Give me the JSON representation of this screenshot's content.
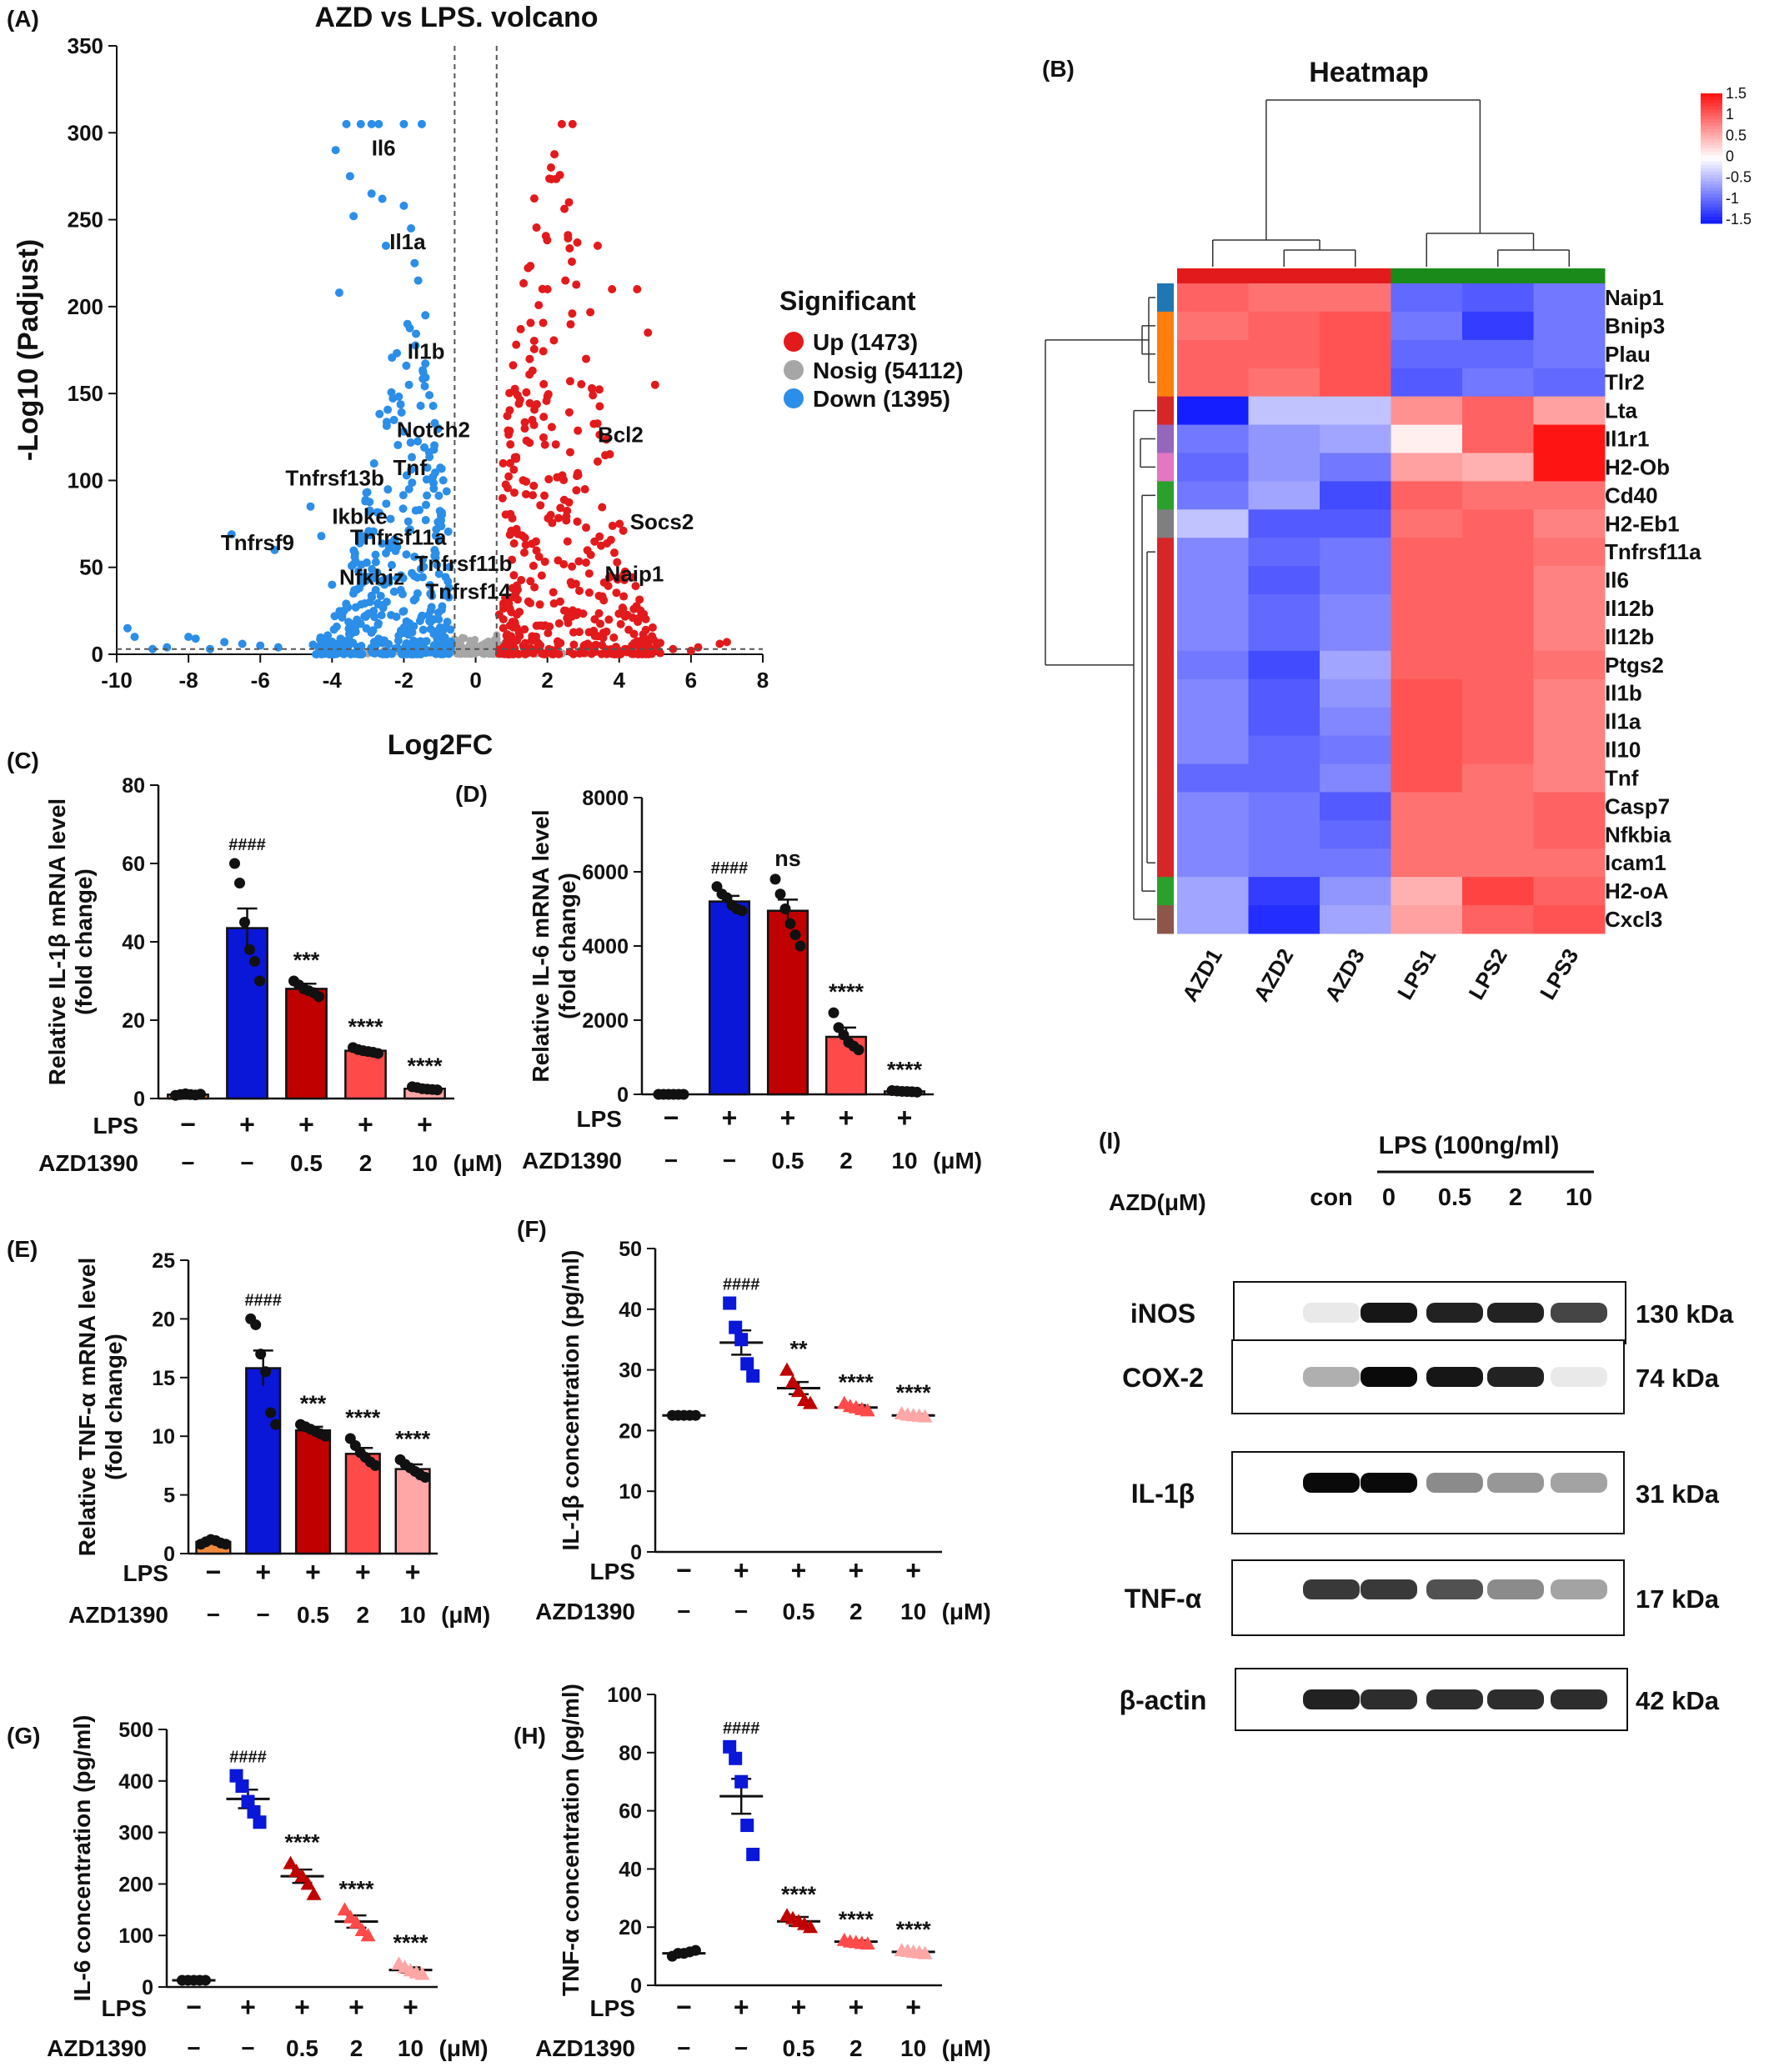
{
  "panel_labels": [
    "(A)",
    "(B)",
    "(C)",
    "(D)",
    "(E)",
    "(F)",
    "(G)",
    "(H)",
    "(I)"
  ],
  "colors": {
    "up": "#e31a1c",
    "down": "#2b8ee8",
    "nosig": "#a6a6a6",
    "lps": "#0a16d8",
    "azd05": "#c00000",
    "azd2": "#ff4a4a",
    "azd10": "#ffa6a6",
    "con": "#111111",
    "nearwhite": "#f6f6ff"
  },
  "chart_data": [
    {
      "id": "A",
      "type": "scatter",
      "title": "AZD vs LPS. volcano",
      "xlabel": "Log2FC",
      "ylabel": "-Log10 (Padjust)",
      "xlim": [
        -10,
        8
      ],
      "ylim": [
        0,
        350
      ],
      "xticks": [
        -10,
        -8,
        -6,
        -4,
        -2,
        0,
        2,
        4,
        6,
        8
      ],
      "yticks": [
        0,
        50,
        100,
        150,
        200,
        250,
        300,
        350
      ],
      "thresholds": {
        "log2fc": [
          -0.585,
          0.585
        ],
        "padj_line": 3
      },
      "legend": {
        "title": "Significant",
        "placement": "right",
        "entries": [
          "Up (1473)",
          "Nosig (54112)",
          "Down (1395)"
        ]
      },
      "gene_labels": [
        {
          "text": "Il6",
          "x": -2.9,
          "y": 287
        },
        {
          "text": "Il1a",
          "x": -2.4,
          "y": 233
        },
        {
          "text": "Il1b",
          "x": -1.9,
          "y": 170
        },
        {
          "text": "Notch2",
          "x": -2.2,
          "y": 125
        },
        {
          "text": "Tnf",
          "x": -2.3,
          "y": 103
        },
        {
          "text": "Tnfrsf13b",
          "x": -5.3,
          "y": 97
        },
        {
          "text": "Ikbke",
          "x": -4.0,
          "y": 75
        },
        {
          "text": "Tnfrsf11a",
          "x": -3.5,
          "y": 63
        },
        {
          "text": "Tnfrsf9",
          "x": -7.1,
          "y": 60
        },
        {
          "text": "Tnfrsf11b",
          "x": -1.7,
          "y": 48
        },
        {
          "text": "Nfkbiz",
          "x": -3.8,
          "y": 40
        },
        {
          "text": "Tnfrsf14",
          "x": -1.4,
          "y": 32
        },
        {
          "text": "Bcl2",
          "x": 3.4,
          "y": 122
        },
        {
          "text": "Socs2",
          "x": 4.3,
          "y": 72
        },
        {
          "text": "Naip1",
          "x": 3.6,
          "y": 42
        }
      ]
    },
    {
      "id": "B",
      "type": "heatmap",
      "title": "Heatmap",
      "columns": [
        "AZD1",
        "AZD2",
        "AZD3",
        "LPS1",
        "LPS2",
        "LPS3"
      ],
      "rows": [
        "Naip1",
        "Bnip3",
        "Plau",
        "Tlr2",
        "Lta",
        "Il1r1",
        "H2-Ob",
        "Cd40",
        "H2-Eb1",
        "Tnfrsf11a",
        "Il6",
        "Il12b",
        "Il12b",
        "Ptgs2",
        "Il1b",
        "Il1a",
        "Il10",
        "Tnf",
        "Casp7",
        "Nfkbia",
        "Icam1",
        "H2-oA",
        "Cxcl3"
      ],
      "values": [
        [
          1.0,
          0.9,
          0.9,
          -1.0,
          -1.1,
          -0.9
        ],
        [
          0.9,
          1.0,
          1.1,
          -0.9,
          -1.3,
          -0.9
        ],
        [
          1.0,
          1.0,
          1.1,
          -1.0,
          -1.0,
          -0.9
        ],
        [
          1.0,
          0.9,
          1.1,
          -1.1,
          -0.9,
          -1.0
        ],
        [
          -1.6,
          -0.4,
          -0.4,
          0.7,
          1.0,
          0.6
        ],
        [
          -0.9,
          -0.7,
          -0.6,
          0.1,
          1.0,
          1.5
        ],
        [
          -1.0,
          -0.7,
          -0.9,
          0.6,
          0.5,
          1.5
        ],
        [
          -0.9,
          -0.6,
          -1.2,
          1.0,
          0.9,
          0.9
        ],
        [
          -0.4,
          -1.1,
          -1.1,
          0.9,
          1.0,
          0.8
        ],
        [
          -0.8,
          -1.0,
          -0.9,
          1.0,
          1.0,
          0.9
        ],
        [
          -0.8,
          -1.1,
          -0.9,
          1.0,
          1.0,
          0.8
        ],
        [
          -0.8,
          -1.0,
          -0.8,
          1.0,
          1.0,
          0.8
        ],
        [
          -0.8,
          -1.0,
          -0.8,
          1.0,
          1.0,
          0.8
        ],
        [
          -0.9,
          -1.2,
          -0.6,
          1.0,
          1.0,
          0.9
        ],
        [
          -0.8,
          -1.1,
          -0.7,
          1.1,
          1.0,
          0.8
        ],
        [
          -0.8,
          -1.1,
          -0.8,
          1.1,
          1.0,
          0.8
        ],
        [
          -0.8,
          -1.0,
          -0.9,
          1.1,
          1.0,
          0.8
        ],
        [
          -1.0,
          -1.0,
          -0.8,
          1.1,
          0.9,
          0.8
        ],
        [
          -0.8,
          -0.9,
          -1.1,
          0.9,
          0.9,
          1.0
        ],
        [
          -0.8,
          -0.9,
          -1.0,
          0.9,
          0.9,
          1.0
        ],
        [
          -0.8,
          -0.9,
          -0.9,
          0.9,
          0.9,
          0.9
        ],
        [
          -0.6,
          -1.3,
          -0.7,
          0.5,
          1.2,
          1.0
        ],
        [
          -0.6,
          -1.4,
          -0.6,
          0.6,
          1.0,
          1.1
        ]
      ],
      "row_groups": [
        "#1f77b4",
        "#ff7f0e",
        "#ff7f0e",
        "#ff7f0e",
        "#d62728",
        "#9467bd",
        "#e377c2",
        "#2ca02c",
        "#7f7f7f",
        "#d62728",
        "#d62728",
        "#d62728",
        "#d62728",
        "#d62728",
        "#d62728",
        "#d62728",
        "#d62728",
        "#d62728",
        "#d62728",
        "#d62728",
        "#d62728",
        "#2ca02c",
        "#8c564b"
      ],
      "col_groups": [
        "#e31a1c",
        "#e31a1c",
        "#e31a1c",
        "#1a8a1a",
        "#1a8a1a",
        "#1a8a1a"
      ],
      "colorbar": {
        "min": -1.5,
        "max": 1.5,
        "ticks": [
          "1.5",
          "1",
          "0.5",
          "0",
          "-0.5",
          "-1",
          "-1.5"
        ]
      }
    },
    {
      "id": "C",
      "type": "bar",
      "ylabel": "Relative IL-1β mRNA level\n(fold change)",
      "ylim": [
        0,
        80
      ],
      "yticks": [
        0,
        20,
        40,
        60,
        80
      ],
      "means": [
        1.0,
        43.5,
        28.0,
        12.2,
        2.5
      ],
      "sem": [
        0.2,
        5.0,
        1.3,
        0.5,
        0.3
      ],
      "points": [
        [
          0.8,
          1.0,
          1.2,
          1.0,
          0.9,
          1.1
        ],
        [
          60,
          55,
          45,
          38,
          35,
          30
        ],
        [
          30,
          29,
          28,
          27.5,
          27,
          26
        ],
        [
          13,
          12.5,
          12.2,
          12,
          11.8,
          11.5
        ],
        [
          3,
          2.8,
          2.5,
          2.4,
          2.3,
          2.2
        ]
      ],
      "annotations": [
        "",
        "####",
        "***",
        "****",
        "****"
      ]
    },
    {
      "id": "D",
      "type": "bar",
      "ylabel": "Relative IL-6 mRNA level\n(fold change)",
      "ylim": [
        0,
        8000
      ],
      "yticks": [
        0,
        2000,
        4000,
        6000,
        8000
      ],
      "means": [
        0,
        5200,
        4950,
        1550,
        80
      ],
      "sem": [
        0,
        150,
        300,
        250,
        20
      ],
      "points": [
        [
          0,
          0,
          0,
          0,
          0,
          0
        ],
        [
          5600,
          5400,
          5300,
          5100,
          5000,
          4950
        ],
        [
          5800,
          5400,
          5000,
          4600,
          4300,
          4000
        ],
        [
          2200,
          1800,
          1600,
          1400,
          1300,
          1200
        ],
        [
          100,
          90,
          80,
          75,
          70,
          60
        ]
      ],
      "annotations": [
        "",
        "####",
        "ns",
        "****",
        "****"
      ]
    },
    {
      "id": "E",
      "type": "bar",
      "ylabel": "Relative TNF-α mRNA level\n(fold change)",
      "ylim": [
        0,
        25
      ],
      "yticks": [
        0,
        5,
        10,
        15,
        20,
        25
      ],
      "means": [
        1.0,
        15.8,
        10.5,
        8.5,
        7.2
      ],
      "sem": [
        0.15,
        1.5,
        0.3,
        0.5,
        0.4
      ],
      "points": [
        [
          0.8,
          1.0,
          1.2,
          1.1,
          0.9,
          0.8
        ],
        [
          20,
          19.5,
          17,
          15.5,
          12,
          11
        ],
        [
          11,
          10.8,
          10.6,
          10.4,
          10.2,
          10
        ],
        [
          9.8,
          9.2,
          8.6,
          8.2,
          7.8,
          7.5
        ],
        [
          8,
          7.6,
          7.3,
          7,
          6.7,
          6.5
        ]
      ],
      "annotations": [
        "",
        "####",
        "***",
        "****",
        "****"
      ]
    },
    {
      "id": "F",
      "type": "scatter",
      "ylabel": "IL-1β concentration (pg/ml)",
      "ylim": [
        0,
        50
      ],
      "yticks": [
        0,
        10,
        20,
        30,
        40,
        50
      ],
      "means": [
        22.5,
        34.5,
        27,
        23.8,
        22.5
      ],
      "sem": [
        0.1,
        2,
        1,
        0.4,
        0.2
      ],
      "points": [
        [
          22.5,
          22.5,
          22.5,
          22.5,
          22.5
        ],
        [
          41,
          37,
          35,
          31,
          29
        ],
        [
          30,
          28,
          26.5,
          25,
          24.5
        ],
        [
          24.5,
          24,
          23.8,
          23.5,
          23.3
        ],
        [
          22.8,
          22.6,
          22.5,
          22.4,
          22.3
        ]
      ],
      "annotations": [
        "",
        "####",
        "**",
        "****",
        "****"
      ]
    },
    {
      "id": "G",
      "type": "scatter",
      "ylabel": "IL-6 concentration (pg/ml)",
      "ylim": [
        0,
        500
      ],
      "yticks": [
        0,
        100,
        200,
        300,
        400,
        500
      ],
      "means": [
        13,
        365,
        215,
        127,
        33
      ],
      "sem": [
        1,
        18,
        13,
        12,
        5
      ],
      "points": [
        [
          13,
          13,
          13,
          13,
          13
        ],
        [
          410,
          390,
          360,
          340,
          320
        ],
        [
          240,
          225,
          215,
          200,
          180
        ],
        [
          150,
          135,
          125,
          110,
          100
        ],
        [
          45,
          38,
          32,
          28,
          25
        ]
      ],
      "annotations": [
        "",
        "####",
        "****",
        "****",
        "****"
      ]
    },
    {
      "id": "H",
      "type": "scatter",
      "ylabel": "TNF-α concentration (pg/ml)",
      "ylim": [
        0,
        100
      ],
      "yticks": [
        0,
        20,
        40,
        60,
        80,
        100
      ],
      "means": [
        11,
        65,
        22,
        15,
        11.5
      ],
      "sem": [
        0.3,
        6,
        1.5,
        0.4,
        0.2
      ],
      "points": [
        [
          10,
          11,
          11,
          11.5,
          12
        ],
        [
          82,
          78,
          70,
          55,
          45
        ],
        [
          24,
          23,
          22,
          21,
          20
        ],
        [
          15.5,
          15,
          14.8,
          14.5,
          14.3
        ],
        [
          12,
          11.8,
          11.5,
          11.3,
          11
        ]
      ],
      "annotations": [
        "",
        "####",
        "****",
        "****",
        "****"
      ]
    }
  ],
  "bar_x_rows": {
    "lps_label": "LPS",
    "lps_values": [
      "−",
      "+",
      "+",
      "+",
      "+"
    ],
    "azd_label": "AZD1390",
    "azd_values": [
      "−",
      "−",
      "0.5",
      "2",
      "10"
    ],
    "unit": "(μM)"
  },
  "blot": {
    "header_label": "LPS (100ng/ml)",
    "azd_label": "AZD(μM)",
    "lanes": [
      "con",
      "0",
      "0.5",
      "2",
      "10"
    ],
    "proteins": [
      {
        "name": "iNOS",
        "size": "130 kDa",
        "bands": [
          0.05,
          0.95,
          0.9,
          0.9,
          0.75
        ]
      },
      {
        "name": "COX-2",
        "size": "74 kDa",
        "bands": [
          0.3,
          1.0,
          0.95,
          0.9,
          0.05
        ]
      },
      {
        "name": "IL-1β",
        "size": "31 kDa",
        "bands": [
          1.0,
          1.0,
          0.45,
          0.4,
          0.35
        ]
      },
      {
        "name": "TNF-α",
        "size": "17 kDa",
        "bands": [
          0.8,
          0.8,
          0.7,
          0.45,
          0.35
        ]
      },
      {
        "name": "β-actin",
        "size": "42 kDa",
        "bands": [
          0.9,
          0.85,
          0.85,
          0.85,
          0.85
        ]
      }
    ]
  }
}
